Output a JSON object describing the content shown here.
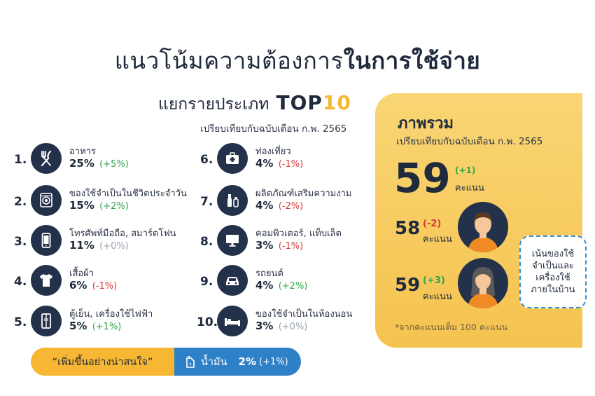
{
  "title": {
    "part1": "แนวโน้มความต้องการ",
    "part2": "ในการใช้จ่าย"
  },
  "category": {
    "heading": "แยกรายประเภท",
    "top": "TOP",
    "ten": "10",
    "compare": "เปรียบเทียบกับฉบับเดือน ก.พ. 2565"
  },
  "items": [
    {
      "num": "1.",
      "name": "อาหาร",
      "value": "25%",
      "change": "(+5%)",
      "trend": "up",
      "icon": "fork-knife-icon"
    },
    {
      "num": "2.",
      "name": "ของใช้จำเป็นในชีวิตประจำวัน",
      "value": "15%",
      "change": "(+2%)",
      "trend": "up",
      "icon": "washing-machine-icon"
    },
    {
      "num": "3.",
      "name": "โทรศัพท์มือถือ, สมาร์ตโฟน",
      "value": "11%",
      "change": "(+0%)",
      "trend": "flat",
      "icon": "smartphone-icon"
    },
    {
      "num": "4.",
      "name": "เสื้อผ้า",
      "value": "6%",
      "change": "(-1%)",
      "trend": "down",
      "icon": "tshirt-icon"
    },
    {
      "num": "5.",
      "name": "ตู้เย็น, เครื่องใช้ไฟฟ้า",
      "value": "5%",
      "change": "(+1%)",
      "trend": "up",
      "icon": "refrigerator-icon"
    },
    {
      "num": "6.",
      "name": "ท่องเที่ยว",
      "value": "4%",
      "change": "(-1%)",
      "trend": "down",
      "icon": "suitcase-icon"
    },
    {
      "num": "7.",
      "name": "ผลิตภัณฑ์เสริมความงาม",
      "value": "4%",
      "change": "(-2%)",
      "trend": "down",
      "icon": "cosmetics-icon"
    },
    {
      "num": "8.",
      "name": "คอมพิวเตอร์, แท็บเล็ต",
      "value": "3%",
      "change": "(-1%)",
      "trend": "down",
      "icon": "monitor-icon"
    },
    {
      "num": "9.",
      "name": "รถยนต์",
      "value": "4%",
      "change": "(+2%)",
      "trend": "up",
      "icon": "car-icon"
    },
    {
      "num": "10.",
      "name": "ของใช้จำเป็นในห้องนอน",
      "value": "3%",
      "change": "(+0%)",
      "trend": "flat",
      "icon": "bed-icon"
    }
  ],
  "highlight": {
    "label": "“เพิ่มขึ้นอย่างน่าสนใจ”",
    "item": "น้ำมัน",
    "value": "2%",
    "change": "(+1%)",
    "icon": "fuel-can-icon"
  },
  "overall": {
    "title": "ภาพรวม",
    "compare": "เปรียบเทียบกับฉบับเดือน ก.พ. 2565",
    "score": "59",
    "score_change": "(+1)",
    "unit": "คะแนน",
    "male": {
      "score": "58",
      "change": "(-2)",
      "unit": "คะแนน"
    },
    "female": {
      "score": "59",
      "change": "(+3)",
      "unit": "คะแนน"
    },
    "bubble": "เน้นของใช้จำเป็นและเครื่องใช้ภายในบ้าน",
    "note": "*จากคะแนนเต็ม 100 คะแนน"
  },
  "colors": {
    "navy": "#23324a",
    "up": "#2fa64a",
    "down": "#d83a3a",
    "flat": "#9aa3ad",
    "yellow": "#f7b733",
    "blue": "#2f81c7",
    "orange": "#f08a24"
  }
}
